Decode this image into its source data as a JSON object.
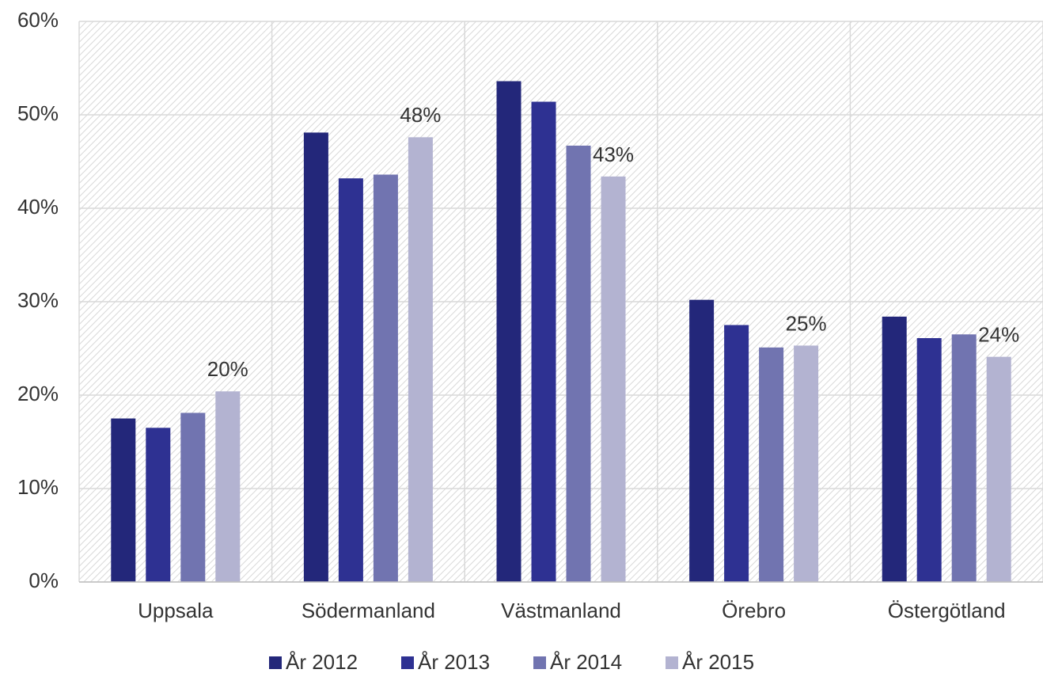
{
  "chart_data": {
    "type": "bar",
    "categories": [
      "Uppsala",
      "Södermanland",
      "Västmanland",
      "Örebro",
      "Östergötland"
    ],
    "series": [
      {
        "name": "År 2012",
        "color": "#23277a",
        "values": [
          17.5,
          48.1,
          53.6,
          30.2,
          28.4
        ]
      },
      {
        "name": "År 2013",
        "color": "#2e3192",
        "values": [
          16.5,
          43.2,
          51.4,
          27.5,
          26.1
        ]
      },
      {
        "name": "År 2014",
        "color": "#7174b0",
        "values": [
          18.1,
          43.6,
          46.7,
          25.1,
          26.5
        ]
      },
      {
        "name": "År 2015",
        "color": "#b3b3d1",
        "values": [
          20.4,
          47.6,
          43.4,
          25.3,
          24.1
        ],
        "value_labels": [
          "20%",
          "48%",
          "43%",
          "25%",
          "24%"
        ]
      }
    ],
    "ylim": [
      0,
      60
    ],
    "yticks": [
      {
        "value": 0,
        "label": "0%"
      },
      {
        "value": 10,
        "label": "10%"
      },
      {
        "value": 20,
        "label": "20%"
      },
      {
        "value": 30,
        "label": "30%"
      },
      {
        "value": 40,
        "label": "40%"
      },
      {
        "value": 50,
        "label": "50%"
      },
      {
        "value": 60,
        "label": "60%"
      }
    ],
    "grid": true,
    "legend": "bottom"
  }
}
